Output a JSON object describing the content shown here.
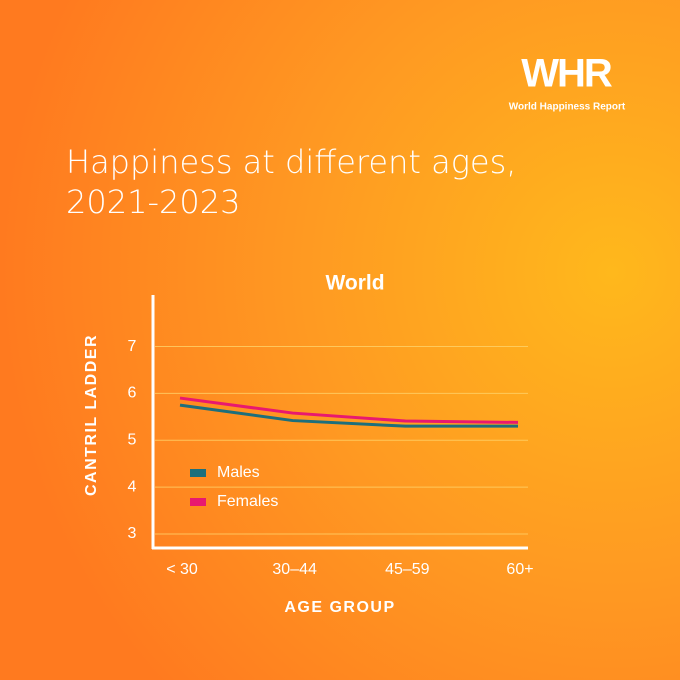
{
  "logo": {
    "mark": "WHR",
    "name": "World Happiness Report"
  },
  "chart_data": {
    "type": "line",
    "title": "Happiness at different ages, 2021-2023",
    "subtitle": "World",
    "y_label": "CANTRIL LADDER",
    "x_label": "AGE GROUP",
    "categories": [
      "< 30",
      "30–44",
      "45–59",
      "60+"
    ],
    "series": [
      {
        "name": "Males",
        "color": "#1d6f7c",
        "values": [
          5.75,
          5.42,
          5.3,
          5.3
        ]
      },
      {
        "name": "Females",
        "color": "#e8196f",
        "values": [
          5.9,
          5.58,
          5.41,
          5.38
        ]
      }
    ],
    "ylim": [
      2.7,
      8.1
    ],
    "yticks": [
      3,
      4,
      5,
      6,
      7
    ],
    "grid": true,
    "legend": "lower-left"
  }
}
